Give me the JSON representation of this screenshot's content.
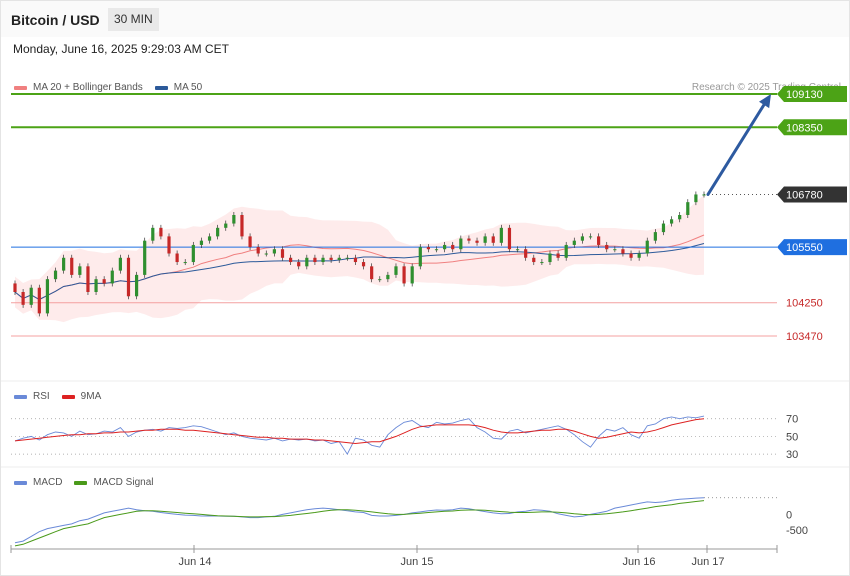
{
  "header": {
    "title": "Bitcoin / USD",
    "interval": "30 MIN"
  },
  "timestamp": "Monday, June 16, 2025 9:29:03 AM CET",
  "copyright": "Research © 2025 Trading Central",
  "legends": {
    "price": [
      {
        "label": "MA 20 + Bollinger Bands",
        "color": "#f08080"
      },
      {
        "label": "MA 50",
        "color": "#2c5a9a"
      }
    ],
    "rsi": [
      {
        "label": "RSI",
        "color": "#6a8ad8"
      },
      {
        "label": "9MA",
        "color": "#dd2222"
      }
    ],
    "macd": [
      {
        "label": "MACD",
        "color": "#6a8ad8"
      },
      {
        "label": "MACD Signal",
        "color": "#4a9a1a"
      }
    ]
  },
  "chart_data": [
    {
      "type": "candlestick",
      "panel": "price",
      "ylim": [
        102700,
        109900
      ],
      "current_price": 106780,
      "levels": [
        {
          "value": 109130,
          "label": "109130",
          "kind": "resistance",
          "color": "#4ca316"
        },
        {
          "value": 108350,
          "label": "108350",
          "kind": "resistance",
          "color": "#4ca316"
        },
        {
          "value": 106780,
          "label": "106780",
          "kind": "current",
          "color": "#333333"
        },
        {
          "value": 105550,
          "label": "105550",
          "kind": "pivot",
          "color": "#1f6fe0"
        },
        {
          "value": 104250,
          "label": "104250",
          "kind": "support",
          "color": "#e06060"
        },
        {
          "value": 103470,
          "label": "103470",
          "kind": "support",
          "color": "#e06060"
        }
      ],
      "target_arrow": {
        "from": 106780,
        "to": 109130
      },
      "closes": [
        104500,
        104200,
        104600,
        104000,
        104800,
        105000,
        105300,
        104900,
        105100,
        104500,
        104800,
        104700,
        105000,
        105300,
        104400,
        104900,
        105700,
        106000,
        105800,
        105400,
        105200,
        105200,
        105600,
        105700,
        105800,
        106000,
        106100,
        106300,
        105800,
        105550,
        105400,
        105400,
        105500,
        105300,
        105200,
        105100,
        105300,
        105200,
        105300,
        105250,
        105300,
        105300,
        105200,
        105100,
        104800,
        104800,
        104900,
        105100,
        104700,
        105100,
        105550,
        105500,
        105500,
        105600,
        105500,
        105750,
        105700,
        105650,
        105800,
        105650,
        106000,
        105500,
        105500,
        105300,
        105200,
        105200,
        105400,
        105300,
        105600,
        105700,
        105800,
        105800,
        105600,
        105500,
        105500,
        105400,
        105300,
        105400,
        105700,
        105900,
        106100,
        106200,
        106300,
        106600,
        106780,
        106780
      ]
    },
    {
      "type": "line",
      "panel": "RSI",
      "ylim": [
        20,
        90
      ],
      "ticks": [
        70,
        50,
        30
      ],
      "series": [
        {
          "name": "RSI",
          "values": [
            45,
            48,
            50,
            46,
            52,
            55,
            54,
            50,
            56,
            52,
            53,
            56,
            55,
            60,
            50,
            55,
            57,
            58,
            56,
            60,
            59,
            60,
            62,
            61,
            58,
            55,
            52,
            54,
            50,
            48,
            47,
            46,
            48,
            45,
            47,
            46,
            47,
            45,
            46,
            42,
            44,
            30,
            48,
            46,
            40,
            38,
            52,
            60,
            66,
            68,
            62,
            60,
            66,
            64,
            65,
            68,
            70,
            60,
            55,
            48,
            47,
            56,
            58,
            54,
            56,
            58,
            60,
            62,
            58,
            52,
            44,
            38,
            50,
            58,
            56,
            60,
            52,
            48,
            62,
            64,
            70,
            72,
            70,
            72,
            71,
            73
          ]
        },
        {
          "name": "9MA",
          "values": [
            45,
            46,
            47,
            48,
            49,
            50,
            51,
            52,
            52,
            53,
            53,
            54,
            54,
            55,
            55,
            56,
            57,
            57,
            58,
            58,
            58,
            57,
            57,
            56,
            55,
            54,
            53,
            52,
            51,
            50,
            49,
            49,
            48,
            48,
            47,
            47,
            47,
            46,
            46,
            45,
            44,
            43,
            42,
            43,
            44,
            44,
            47,
            50,
            54,
            58,
            61,
            62,
            63,
            63,
            63,
            63,
            63,
            62,
            60,
            57,
            55,
            54,
            54,
            55,
            56,
            57,
            57,
            58,
            58,
            56,
            53,
            50,
            48,
            49,
            51,
            53,
            55,
            54,
            55,
            57,
            60,
            63,
            65,
            67,
            69,
            70
          ]
        }
      ]
    },
    {
      "type": "line",
      "panel": "MACD",
      "ylim": [
        -1100,
        1000
      ],
      "ticks": [
        0,
        -500
      ],
      "series": [
        {
          "name": "MACD",
          "values": [
            -900,
            -850,
            -700,
            -550,
            -450,
            -400,
            -350,
            -300,
            -200,
            -150,
            -50,
            50,
            100,
            150,
            200,
            150,
            120,
            100,
            60,
            30,
            0,
            -20,
            -30,
            -50,
            -50,
            -50,
            -60,
            -60,
            -80,
            -100,
            -100,
            -80,
            -60,
            0,
            50,
            100,
            150,
            180,
            200,
            180,
            150,
            120,
            80,
            60,
            -30,
            -50,
            -50,
            -30,
            0,
            50,
            80,
            120,
            140,
            130,
            150,
            200,
            180,
            130,
            90,
            50,
            20,
            30,
            80,
            100,
            150,
            130,
            100,
            20,
            -30,
            -80,
            -60,
            0,
            50,
            100,
            200,
            250,
            300,
            350,
            400,
            380,
            400,
            450,
            480,
            500,
            520,
            530
          ]
        },
        {
          "name": "MACD Signal",
          "values": [
            -1000,
            -950,
            -850,
            -750,
            -650,
            -550,
            -450,
            -400,
            -350,
            -300,
            -200,
            -100,
            -50,
            0,
            50,
            100,
            120,
            120,
            100,
            80,
            60,
            40,
            20,
            0,
            -20,
            -40,
            -50,
            -60,
            -70,
            -80,
            -80,
            -70,
            -70,
            -50,
            -30,
            0,
            30,
            60,
            100,
            130,
            150,
            150,
            130,
            110,
            80,
            50,
            20,
            0,
            0,
            20,
            40,
            60,
            80,
            100,
            110,
            130,
            140,
            140,
            130,
            110,
            90,
            70,
            60,
            60,
            70,
            80,
            80,
            70,
            50,
            20,
            0,
            -10,
            0,
            20,
            50,
            80,
            120,
            160,
            200,
            250,
            280,
            310,
            350,
            380,
            410,
            440
          ]
        }
      ]
    }
  ],
  "x_axis": {
    "ticks": [
      "Jun 14",
      "Jun 15",
      "Jun 16",
      "Jun 17"
    ]
  }
}
